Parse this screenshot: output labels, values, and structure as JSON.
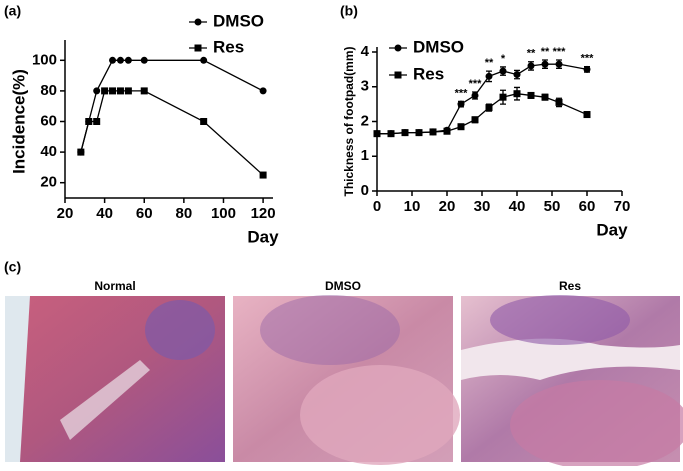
{
  "labels": {
    "a": "(a)",
    "b": "(b)",
    "c": "(c)"
  },
  "images": [
    "Normal",
    "DMSO",
    "Res"
  ],
  "chart_data": [
    {
      "type": "line",
      "ylabel": "Incidence(%)",
      "xlabel": "Day",
      "xlim": [
        20,
        125
      ],
      "xticks": [
        20,
        40,
        60,
        80,
        100,
        120
      ],
      "ylim": [
        10,
        110
      ],
      "yticks": [
        20,
        40,
        60,
        80,
        100
      ],
      "series": [
        {
          "name": "DMSO",
          "color": "#000000",
          "marker": "circle",
          "x": [
            28,
            32,
            36,
            44,
            48,
            52,
            60,
            90,
            120
          ],
          "values": [
            40,
            60,
            80,
            100,
            100,
            100,
            100,
            100,
            80
          ]
        },
        {
          "name": "Res",
          "color": "#000000",
          "marker": "square",
          "x": [
            28,
            32,
            36,
            40,
            44,
            48,
            52,
            60,
            90,
            120
          ],
          "values": [
            40,
            60,
            60,
            80,
            80,
            80,
            80,
            80,
            60,
            25
          ]
        }
      ]
    },
    {
      "type": "line",
      "ylabel": "Thickness of footpad(mm)",
      "xlabel": "Day",
      "xlim": [
        0,
        70
      ],
      "xticks": [
        0,
        10,
        20,
        30,
        40,
        50,
        60,
        70
      ],
      "ylim": [
        0,
        4
      ],
      "yticks": [
        0,
        1,
        2,
        3,
        4
      ],
      "series": [
        {
          "name": "DMSO",
          "color": "#000000",
          "marker": "circle",
          "x": [
            0,
            4,
            8,
            12,
            16,
            20,
            24,
            28,
            32,
            36,
            40,
            44,
            48,
            52,
            60
          ],
          "values": [
            1.65,
            1.65,
            1.68,
            1.68,
            1.7,
            1.75,
            2.5,
            2.75,
            3.3,
            3.45,
            3.35,
            3.6,
            3.65,
            3.65,
            3.5
          ],
          "errors": [
            0.03,
            0.03,
            0.03,
            0.03,
            0.03,
            0.05,
            0.08,
            0.1,
            0.15,
            0.12,
            0.12,
            0.12,
            0.12,
            0.12,
            0.08
          ]
        },
        {
          "name": "Res",
          "color": "#000000",
          "marker": "square",
          "x": [
            0,
            4,
            8,
            12,
            16,
            20,
            24,
            28,
            32,
            36,
            40,
            44,
            48,
            52,
            60
          ],
          "values": [
            1.65,
            1.65,
            1.68,
            1.68,
            1.7,
            1.72,
            1.85,
            2.05,
            2.4,
            2.7,
            2.8,
            2.75,
            2.7,
            2.55,
            2.2
          ],
          "errors": [
            0.03,
            0.03,
            0.03,
            0.03,
            0.03,
            0.05,
            0.06,
            0.08,
            0.1,
            0.2,
            0.18,
            0.08,
            0.08,
            0.12,
            0.08
          ]
        }
      ],
      "annotations": [
        {
          "x": 24,
          "text": "***"
        },
        {
          "x": 28,
          "text": "***"
        },
        {
          "x": 32,
          "text": "**"
        },
        {
          "x": 36,
          "text": "*"
        },
        {
          "x": 44,
          "text": "**"
        },
        {
          "x": 48,
          "text": "**"
        },
        {
          "x": 52,
          "text": "***"
        },
        {
          "x": 60,
          "text": "***"
        }
      ]
    }
  ]
}
